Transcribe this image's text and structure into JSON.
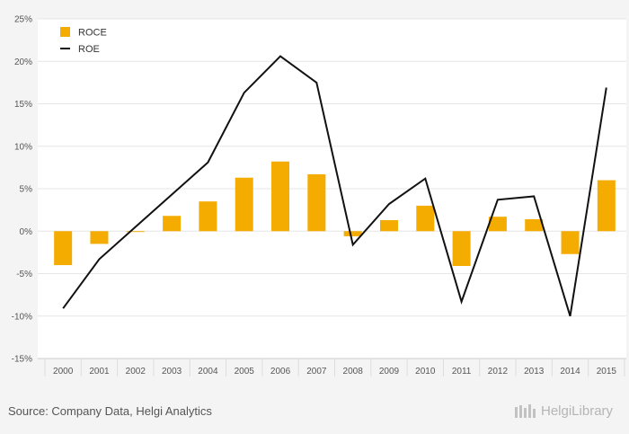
{
  "chart_data": {
    "type": "bar",
    "categories": [
      "2000",
      "2001",
      "2002",
      "2003",
      "2004",
      "2005",
      "2006",
      "2007",
      "2008",
      "2009",
      "2010",
      "2011",
      "2012",
      "2013",
      "2014",
      "2015"
    ],
    "series": [
      {
        "name": "ROCE",
        "type": "bar",
        "color": "#f5ac00",
        "values": [
          -4.0,
          -1.5,
          -0.1,
          1.8,
          3.5,
          6.3,
          8.2,
          6.7,
          -0.6,
          1.3,
          3.0,
          -4.1,
          1.7,
          1.4,
          -2.7,
          6.0
        ]
      },
      {
        "name": "ROE",
        "type": "line",
        "color": "#111111",
        "values": [
          -9.1,
          -3.3,
          0.5,
          4.3,
          8.1,
          16.3,
          20.6,
          17.5,
          -1.6,
          3.2,
          6.2,
          -8.3,
          3.7,
          4.1,
          -10.0,
          16.9
        ]
      }
    ],
    "yticks": [
      "25%",
      "20%",
      "15%",
      "10%",
      "5%",
      "0%",
      "-5%",
      "-10%",
      "-15%"
    ],
    "ylim": [
      -15,
      25
    ],
    "legend_position": "top-left",
    "grid": true
  },
  "footer": {
    "source": "Source: Company Data, Helgi Analytics",
    "brand": "HelgiLibrary"
  }
}
